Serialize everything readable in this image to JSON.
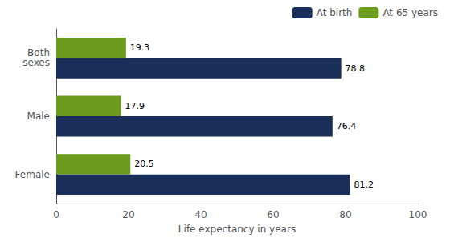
{
  "chart_data": {
    "type": "bar",
    "orientation": "horizontal",
    "categories": [
      "Female",
      "Male",
      "Both\nsexes"
    ],
    "series": [
      {
        "name": "At birth",
        "color": "#1a2e5a",
        "values": [
          81.2,
          76.4,
          78.8
        ]
      },
      {
        "name": "At 65 years",
        "color": "#6b9c1e",
        "values": [
          20.5,
          17.9,
          19.3
        ]
      }
    ],
    "xlabel": "Life expectancy in years",
    "xlim": [
      0,
      100
    ],
    "xticks": [
      0,
      20,
      40,
      60,
      80,
      100
    ],
    "data_labels": true,
    "legend": "upper right",
    "grid": false
  }
}
